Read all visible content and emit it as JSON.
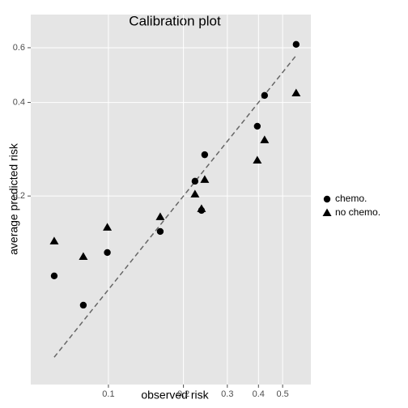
{
  "chart_data": {
    "type": "scatter",
    "title": "Calibration plot",
    "xlabel": "observed risk",
    "ylabel": "average predicted risk",
    "xscale": "log",
    "yscale": "log",
    "xlim": [
      0.0488,
      0.649
    ],
    "ylim": [
      0.0495,
      0.767
    ],
    "xticks": [
      0.1,
      0.2,
      0.3,
      0.4,
      0.5
    ],
    "yticks": [
      0.2,
      0.4,
      0.6
    ],
    "grid": true,
    "legend": "right",
    "reference_line": "dashed",
    "series": [
      {
        "name": "chemo.",
        "color": "#000000",
        "marker": "circle",
        "x": [
          0.0606,
          0.0793,
          0.099,
          0.1614,
          0.2225,
          0.2363,
          0.2434,
          0.3957,
          0.4232,
          0.5665
        ],
        "values": [
          0.1107,
          0.0891,
          0.1316,
          0.1538,
          0.2232,
          0.1798,
          0.2716,
          0.3354,
          0.4214,
          0.615
        ]
      },
      {
        "name": "no chemo.",
        "color": "#000000",
        "marker": "triangle",
        "x": [
          0.0606,
          0.0793,
          0.099,
          0.1614,
          0.2225,
          0.2363,
          0.2434,
          0.3957,
          0.4232,
          0.5665
        ],
        "values": [
          0.1432,
          0.1277,
          0.1585,
          0.1714,
          0.2027,
          0.182,
          0.2259,
          0.2607,
          0.3029,
          0.4287
        ]
      }
    ]
  }
}
